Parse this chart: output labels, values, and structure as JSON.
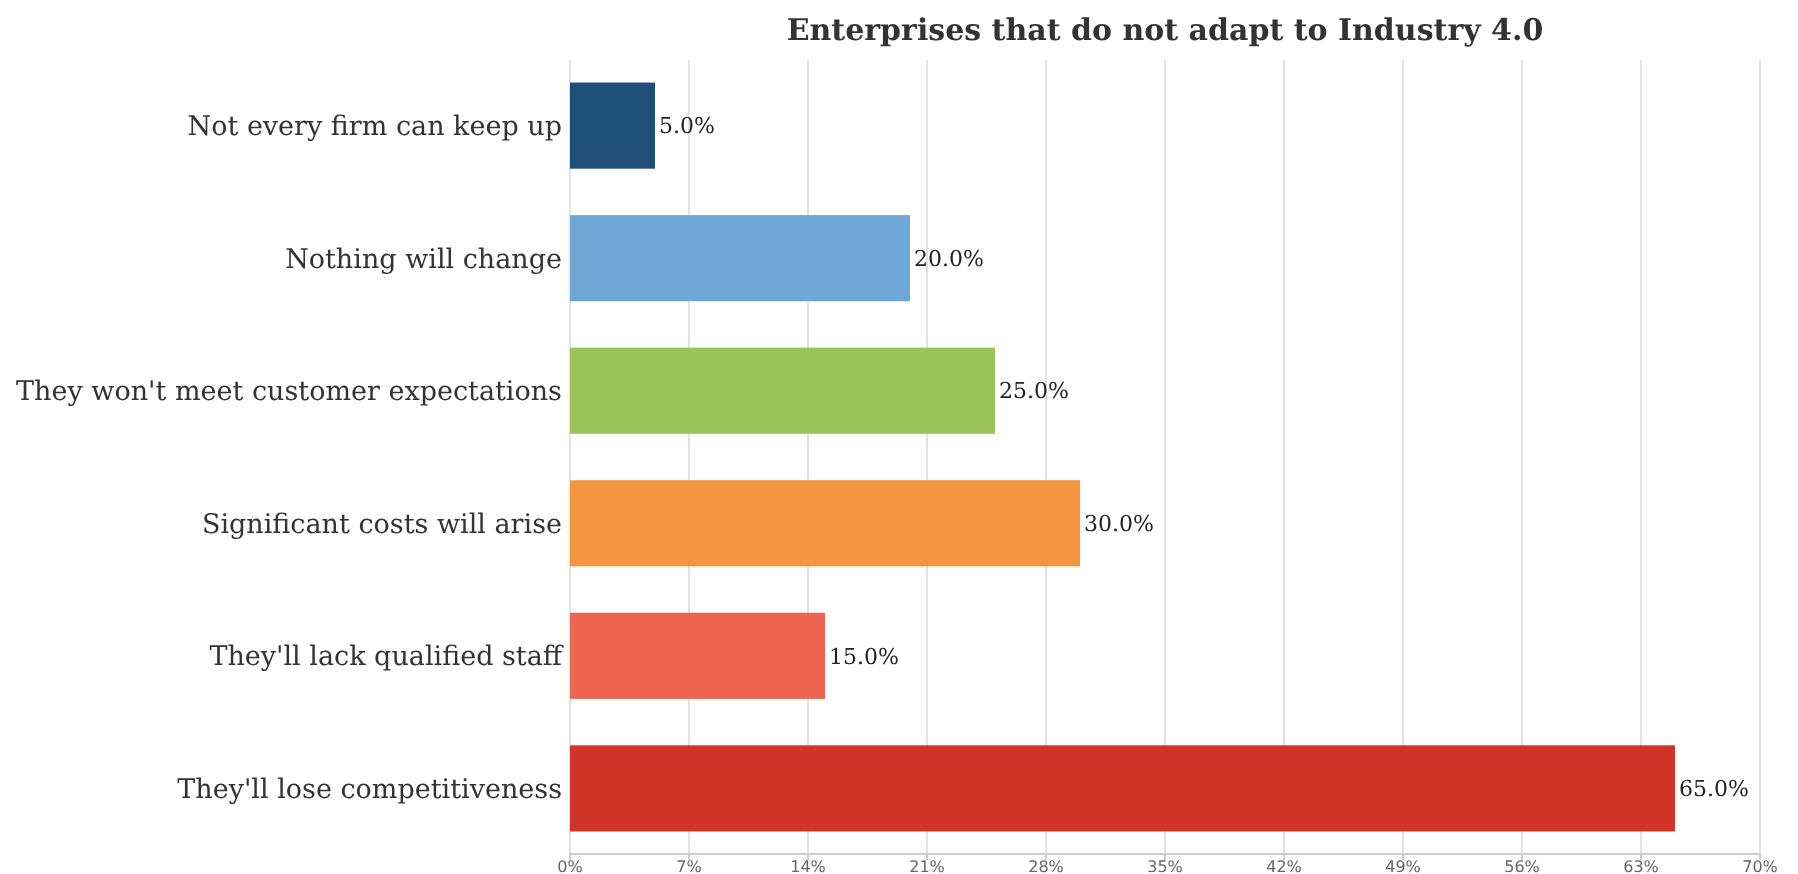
{
  "chart_data": {
    "type": "bar",
    "orientation": "horizontal",
    "title": "Enterprises that do not adapt to Industry 4.0",
    "categories": [
      "Not every firm can keep up",
      "Nothing will change",
      "They won't meet customer expectations",
      "Significant costs will arise",
      "They'll lack qualified staff",
      "They'll lose competitiveness"
    ],
    "values": [
      5,
      20,
      25,
      30,
      15,
      65
    ],
    "colors": [
      "#1f4e79",
      "#6fa8d6",
      "#9bc55a",
      "#f4963f",
      "#ef6650",
      "#cf3426"
    ],
    "value_labels": [
      "5.0%",
      "20.0%",
      "25.0%",
      "30.0%",
      "15.0%",
      "65.0%"
    ],
    "xlim": [
      0,
      70
    ],
    "xticks": [
      {
        "value": 0,
        "label": "0%"
      },
      {
        "value": 7,
        "label": "7%"
      },
      {
        "value": 14,
        "label": "14%"
      },
      {
        "value": 21,
        "label": "21%"
      },
      {
        "value": 28,
        "label": "28%"
      },
      {
        "value": 35,
        "label": "35%"
      },
      {
        "value": 42,
        "label": "42%"
      },
      {
        "value": 49,
        "label": "49%"
      },
      {
        "value": 56,
        "label": "56%"
      },
      {
        "value": 63,
        "label": "63%"
      },
      {
        "value": 70,
        "label": "70%"
      }
    ],
    "grid": "x"
  }
}
